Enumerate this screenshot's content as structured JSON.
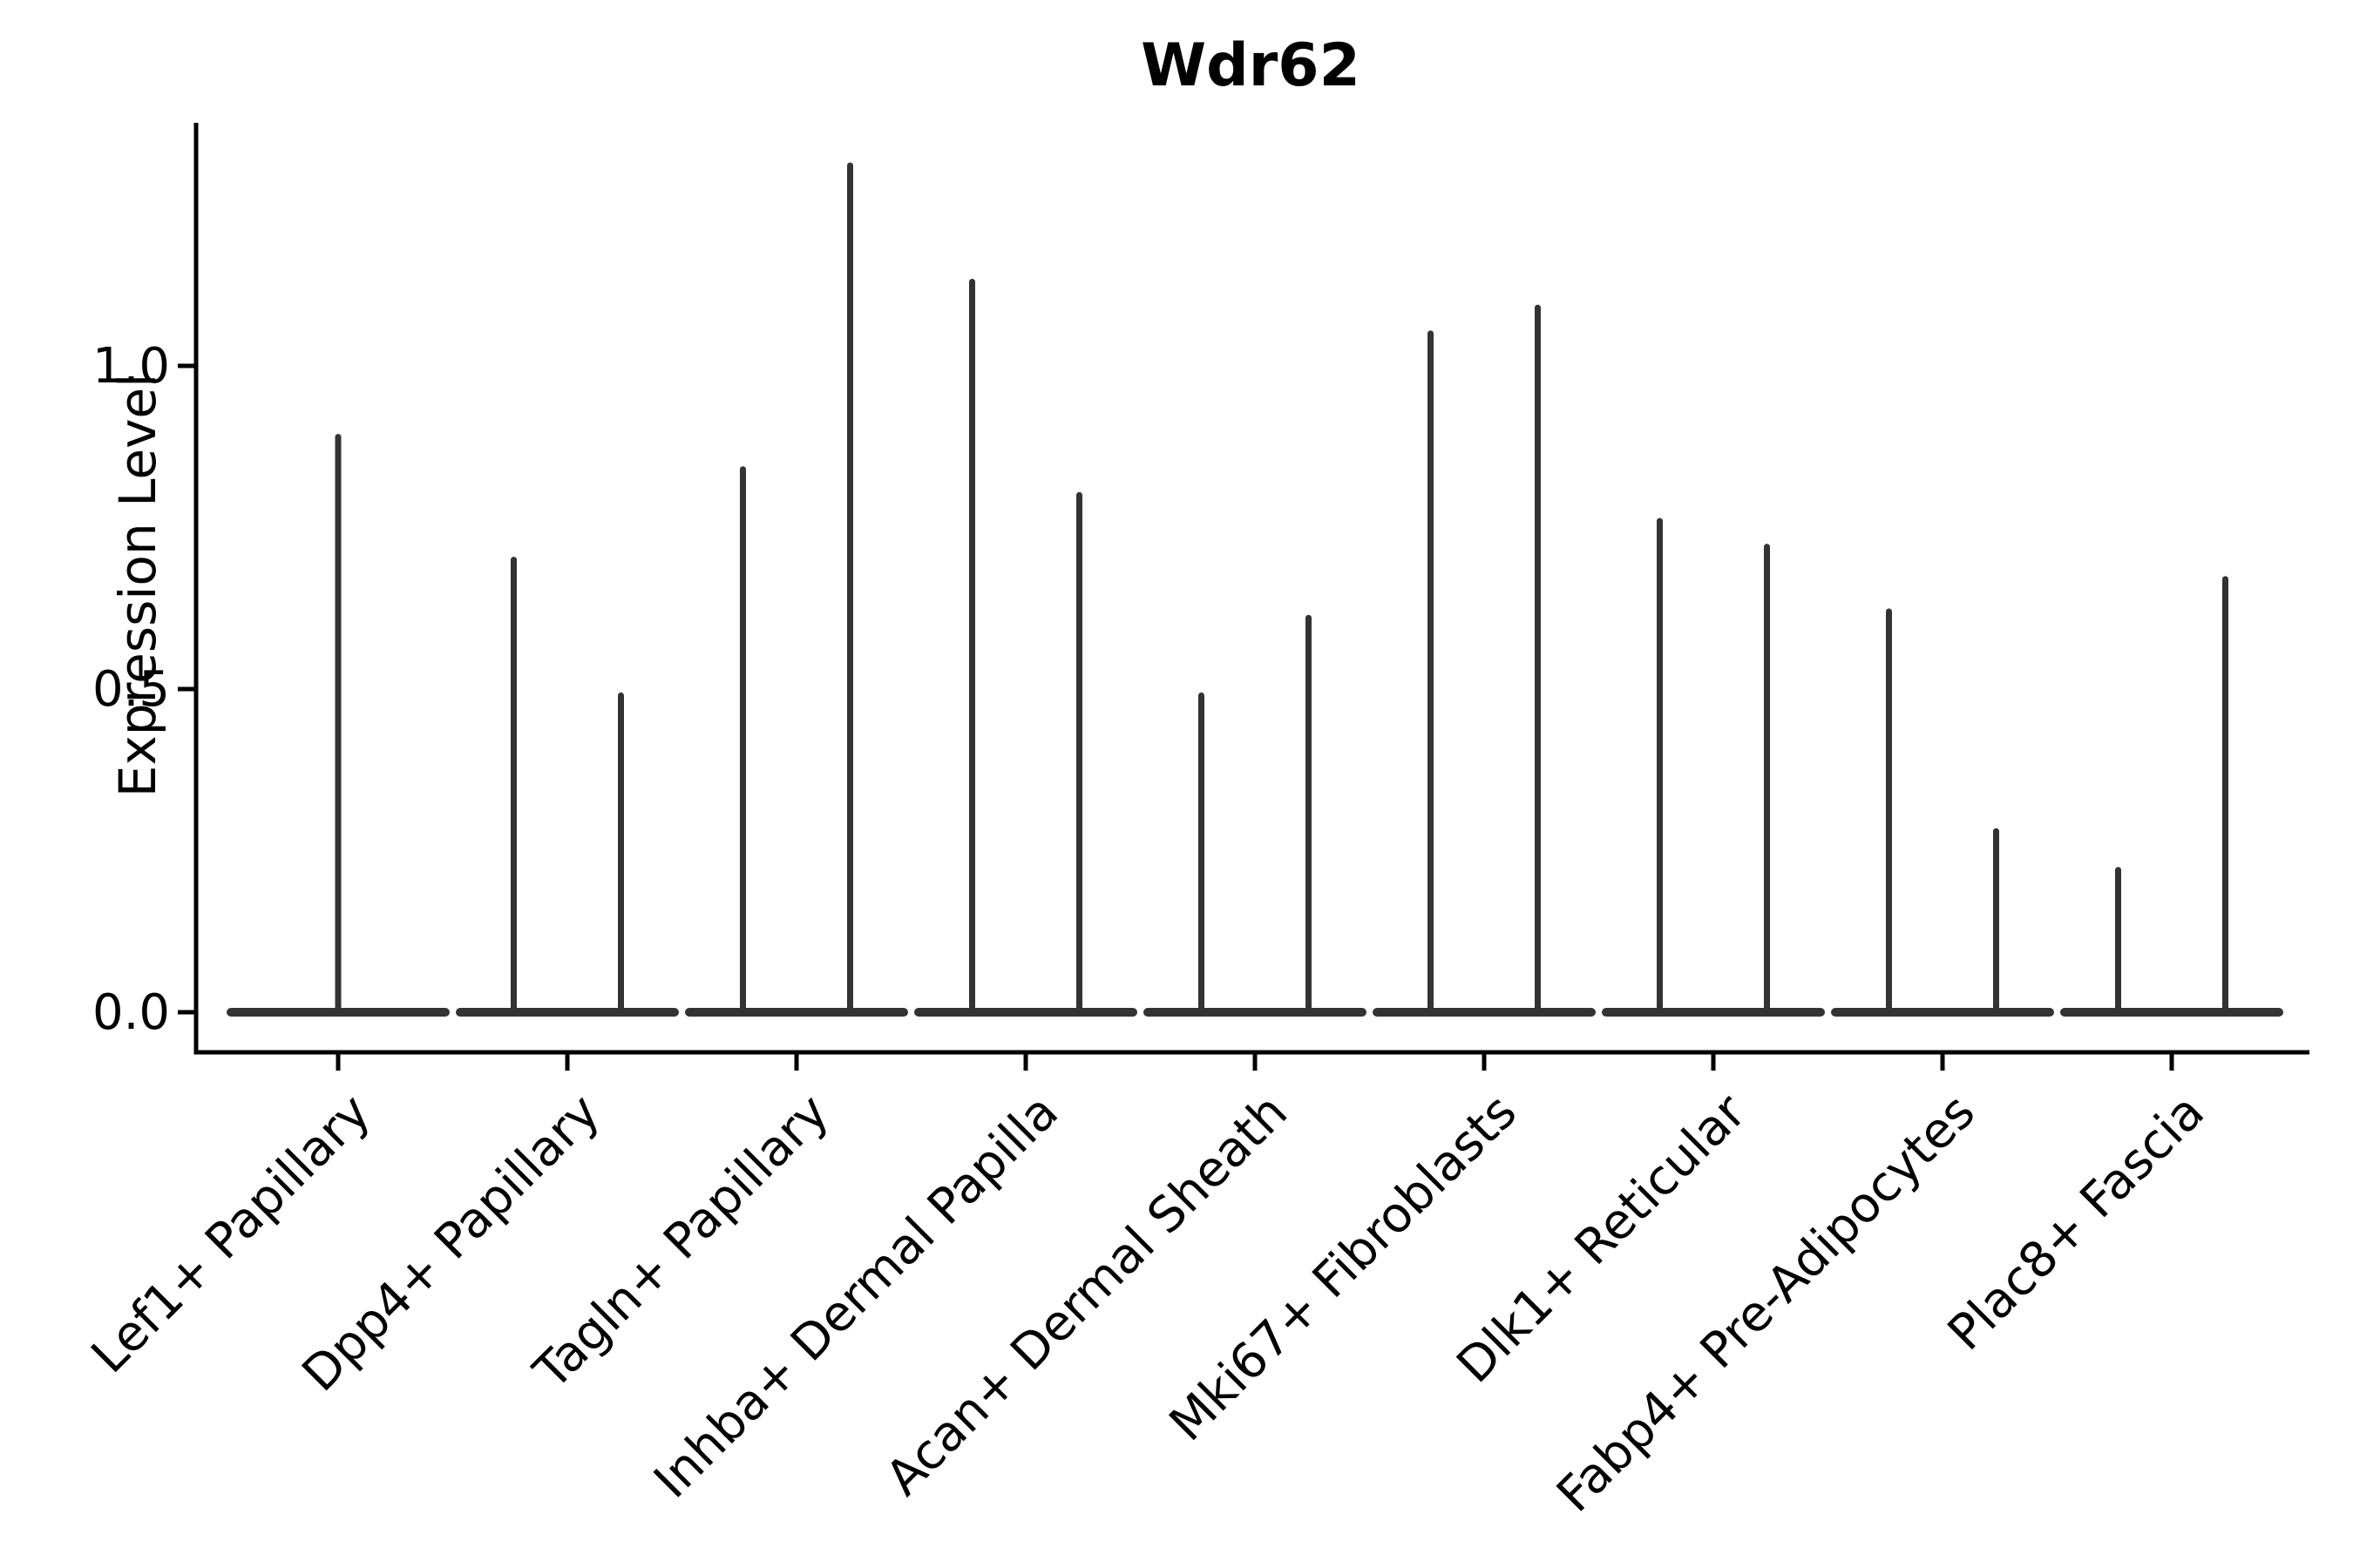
{
  "chart_data": {
    "type": "violin",
    "title": "Wdr62",
    "ylabel": "Expression Level",
    "xlabel": "",
    "legend": "none",
    "grid": false,
    "ylim": [
      0,
      1.36
    ],
    "yticks": [
      0.0,
      0.5,
      1.0
    ],
    "ytick_labels": [
      "0.0",
      "0.5",
      "1.0"
    ],
    "categories": [
      "Lef1+ Papillary",
      "Dpp4+ Papillary",
      "Tagln+ Papillary",
      "Inhba+ Dermal Papilla",
      "Acan+ Dermal Sheath",
      "Mki67+ Fibroblasts",
      "Dlk1+ Reticular",
      "Fabp4+ Pre-Adipocytes",
      "Plac8+ Fascia"
    ],
    "series_note": "Each category shows 1-2 needle violins: nearly all cells at expression 0 (wide flat base at y=0) with a thin density spike reaching the maximum expression value.",
    "violin_max_values": [
      [
        0.89
      ],
      [
        0.7,
        0.49
      ],
      [
        0.84,
        1.31
      ],
      [
        1.13,
        0.8
      ],
      [
        0.49,
        0.61
      ],
      [
        1.05,
        1.09
      ],
      [
        0.76,
        0.72
      ],
      [
        0.62,
        0.28
      ],
      [
        0.22,
        0.67
      ]
    ],
    "baseline_value": 0.0,
    "colors": {
      "violin_stroke": "#333333",
      "axis_stroke": "#000000",
      "text": "#000000",
      "background": "#ffffff"
    }
  }
}
